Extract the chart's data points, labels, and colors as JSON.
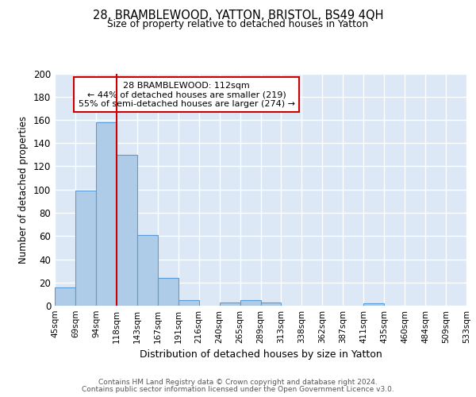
{
  "title": "28, BRAMBLEWOOD, YATTON, BRISTOL, BS49 4QH",
  "subtitle": "Size of property relative to detached houses in Yatton",
  "xlabel": "Distribution of detached houses by size in Yatton",
  "ylabel": "Number of detached properties",
  "bar_heights": [
    16,
    99,
    158,
    130,
    61,
    24,
    5,
    0,
    3,
    5,
    3,
    0,
    0,
    0,
    0,
    2
  ],
  "tick_labels": [
    "45sqm",
    "69sqm",
    "94sqm",
    "118sqm",
    "143sqm",
    "167sqm",
    "191sqm",
    "216sqm",
    "240sqm",
    "265sqm",
    "289sqm",
    "313sqm",
    "338sqm",
    "362sqm",
    "387sqm",
    "411sqm",
    "435sqm",
    "460sqm",
    "484sqm",
    "509sqm",
    "533sqm"
  ],
  "bar_color": "#aecce8",
  "bar_edge_color": "#5b9bd5",
  "vline_x": 3.0,
  "vline_color": "#cc0000",
  "annotation_title": "28 BRAMBLEWOOD: 112sqm",
  "annotation_line1": "← 44% of detached houses are smaller (219)",
  "annotation_line2": "55% of semi-detached houses are larger (274) →",
  "annotation_box_color": "#ffffff",
  "annotation_box_edge": "#cc0000",
  "ylim": [
    0,
    200
  ],
  "yticks": [
    0,
    20,
    40,
    60,
    80,
    100,
    120,
    140,
    160,
    180,
    200
  ],
  "footer_line1": "Contains HM Land Registry data © Crown copyright and database right 2024.",
  "footer_line2": "Contains public sector information licensed under the Open Government Licence v3.0.",
  "background_color": "#dce8f5",
  "grid_color": "#ffffff",
  "fig_background": "#ffffff"
}
